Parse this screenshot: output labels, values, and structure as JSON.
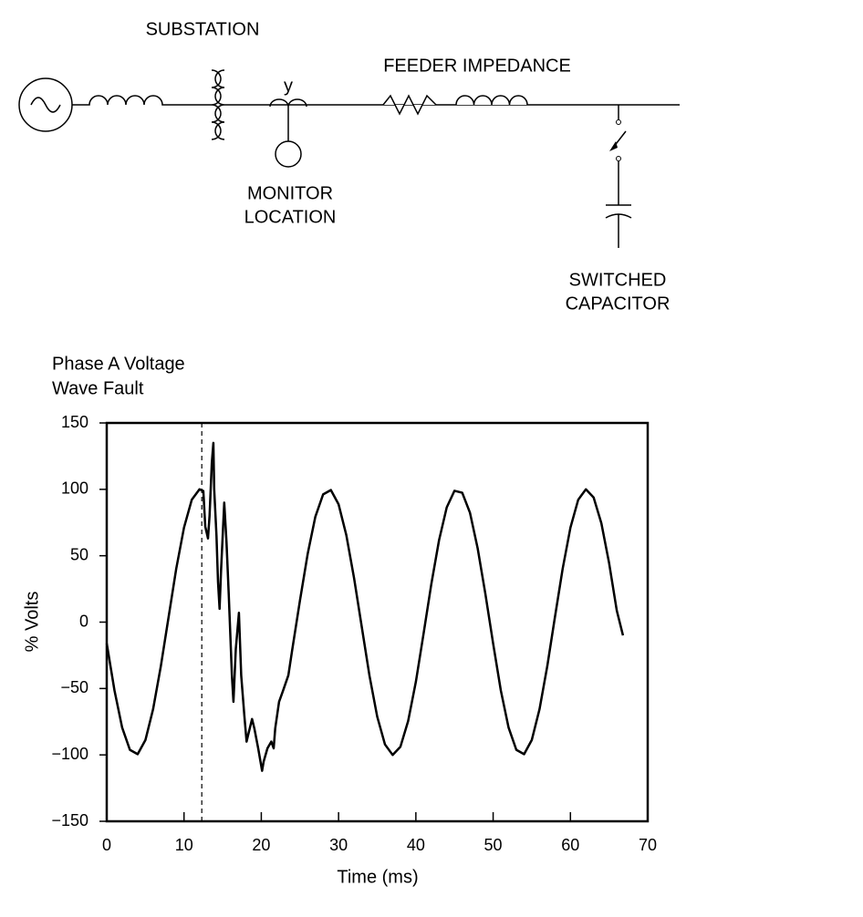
{
  "diagram": {
    "substation": "SUBSTATION",
    "feeder": "FEEDER IMPEDANCE",
    "ct": "y",
    "monitor": [
      "MONITOR",
      "LOCATION"
    ],
    "capacitor": [
      "SWITCHED",
      "CAPACITOR"
    ]
  },
  "chart_data": {
    "type": "line",
    "title": [
      "Phase A Voltage",
      "Wave Fault"
    ],
    "x_label": "Time (ms)",
    "y_label": "% Volts",
    "color": "#000000",
    "event_line_x": 12.3,
    "xlim": [
      0,
      70
    ],
    "xticks": [
      0,
      10,
      20,
      30,
      40,
      50,
      60,
      70
    ],
    "ylim": [
      -150,
      150
    ],
    "yticks": [
      {
        "value": -150,
        "label": "−150"
      },
      {
        "value": -100,
        "label": "−100"
      },
      {
        "value": -50,
        "label": "−50"
      },
      0,
      50,
      100,
      150
    ],
    "x": [
      0,
      1,
      2,
      3,
      4,
      5,
      6,
      7,
      8,
      9,
      10,
      11,
      12,
      12.5,
      12.75,
      13.1,
      13.3,
      13.6,
      13.8,
      13.9,
      14.2,
      14.4,
      14.6,
      14.8,
      15.2,
      15.5,
      15.8,
      16.2,
      16.4,
      16.7,
      17.1,
      17.4,
      17.8,
      18.1,
      18.3,
      18.8,
      19.1,
      19.6,
      20.1,
      20.3,
      20.8,
      21.3,
      21.6,
      21.8,
      22.3,
      22.8,
      23.5,
      24,
      25,
      26,
      27,
      28,
      29,
      30,
      31,
      32,
      33,
      34,
      35,
      36,
      37,
      38,
      39,
      40,
      41,
      42,
      43,
      44,
      45,
      46,
      47,
      48,
      49,
      50,
      51,
      52,
      53,
      54,
      55,
      56,
      57,
      58,
      59,
      60,
      61,
      62,
      63,
      64,
      65,
      66,
      66.8
    ],
    "values": [
      -16,
      -51.5,
      -79.4,
      -96.2,
      -99.5,
      -88.8,
      -65.6,
      -33.2,
      3.8,
      40.3,
      71.2,
      92.1,
      100,
      98.7,
      72,
      63,
      80,
      120,
      135,
      100,
      65,
      30,
      10,
      40,
      90,
      60,
      20,
      -40,
      -60,
      -20,
      7,
      -40,
      -70,
      -90,
      -85,
      -73,
      -80,
      -95,
      -112,
      -105,
      -95,
      -90,
      -95,
      -80,
      -60,
      -52,
      -40,
      -21,
      16.3,
      51.5,
      79.4,
      96.2,
      99.5,
      88.8,
      65.6,
      33.2,
      -3.8,
      -40.3,
      -71.2,
      -92.1,
      -100,
      -93.9,
      -74.5,
      -44.8,
      -8.7,
      28.6,
      61.8,
      86.4,
      98.9,
      97.4,
      82.3,
      55.6,
      21.1,
      -16.3,
      -51.5,
      -79.4,
      -96.2,
      -99.5,
      -88.8,
      -65.6,
      -33.2,
      3.8,
      40.3,
      71.2,
      92.1,
      100,
      93.9,
      74.5,
      44.8,
      8.7,
      -10
    ]
  }
}
